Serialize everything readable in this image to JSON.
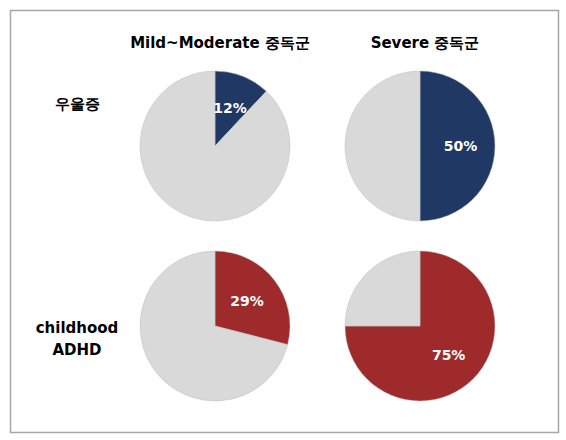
{
  "column_titles": [
    "Mild~Moderate 중독군",
    "Severe 중독군"
  ],
  "row_titles": [
    "우울증",
    "childhood\nADHD"
  ],
  "chart_data": [
    {
      "type": "pie",
      "values": [
        12,
        88
      ],
      "value_labels": [
        "12%",
        null
      ],
      "colors": [
        "#1f3864",
        "#d9d9d9"
      ],
      "data_labels": true
    },
    {
      "type": "pie",
      "values": [
        50,
        50
      ],
      "value_labels": [
        "50%",
        null
      ],
      "colors": [
        "#1f3864",
        "#d9d9d9"
      ],
      "data_labels": true
    },
    {
      "type": "pie",
      "values": [
        29,
        71
      ],
      "value_labels": [
        "29%",
        null
      ],
      "colors": [
        "#9e2a2b",
        "#d9d9d9"
      ],
      "data_labels": true
    },
    {
      "type": "pie",
      "values": [
        75,
        25
      ],
      "value_labels": [
        "75%",
        null
      ],
      "colors": [
        "#9e2a2b",
        "#d9d9d9"
      ],
      "data_labels": true
    }
  ]
}
